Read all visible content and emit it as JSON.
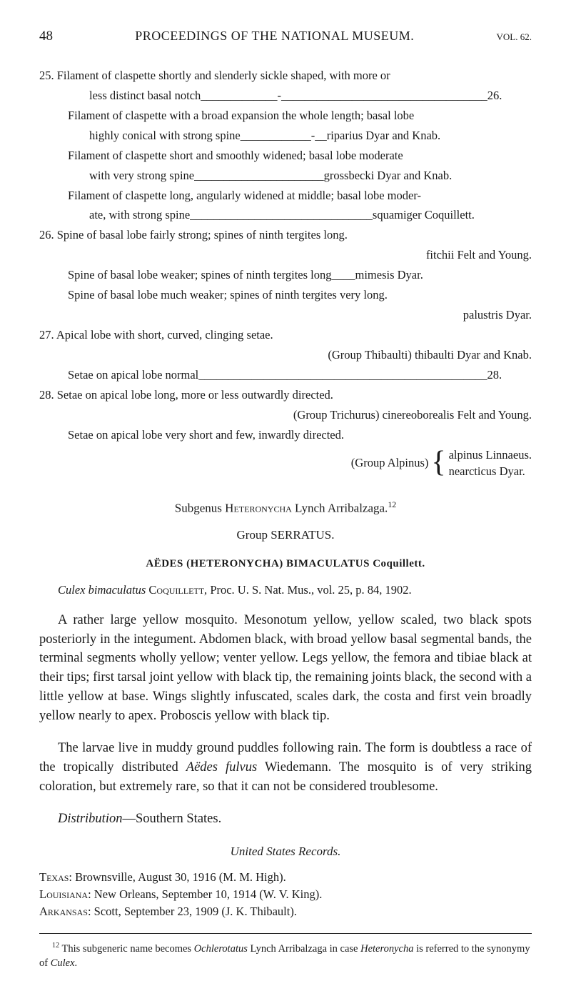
{
  "header": {
    "pageNumber": "48",
    "title": "PROCEEDINGS OF THE NATIONAL MUSEUM.",
    "vol": "VOL. 62."
  },
  "key": {
    "e25a": "25. Filament of claspette shortly and slenderly sickle shaped, with more or",
    "e25b": "less distinct basal notch_____________-___________________________________26.",
    "e25c": "Filament of claspette with a broad expansion the whole length; basal lobe",
    "e25d": "highly conical with strong spine____________-__riparius Dyar and Knab.",
    "e25e": "Filament of claspette short and smoothly widened; basal lobe moderate",
    "e25f": "with very strong spine______________________grossbecki Dyar and Knab.",
    "e25g": "Filament of claspette long, angularly widened at middle; basal lobe moder-",
    "e25h": "ate, with strong spine_______________________________squamiger Coquillett.",
    "e26a": "26. Spine of basal lobe fairly strong; spines of ninth tergites long.",
    "e26b": "fitchii Felt and Young.",
    "e26c": "Spine of basal lobe weaker; spines of ninth tergites long____mimesis Dyar.",
    "e26d": "Spine of basal lobe much weaker; spines of ninth tergites very long.",
    "e26e": "palustris Dyar.",
    "e27a": "27. Apical lobe with short, curved, clinging setae.",
    "e27b": "(Group Thibaulti) thibaulti Dyar and Knab.",
    "e27c": "Setae on apical lobe normal_________________________________________________28.",
    "e28a": "28. Setae on apical lobe long, more or less outwardly directed.",
    "e28b": "(Group Trichurus) cinereoborealis Felt and Young.",
    "e28c": "Setae on apical lobe very short and few, inwardly directed.",
    "braceLabel": "(Group Alpinus)",
    "braceOpt1": "alpinus Linnaeus.",
    "braceOpt2": "nearcticus Dyar."
  },
  "subgenus": {
    "prefix": "Subgenus ",
    "name": "Heteronycha",
    "suffix": " Lynch Arribalzaga.",
    "note": "12"
  },
  "group": "Group SERRATUS.",
  "speciesTitle": "AËDES (HETERONYCHA) BIMACULATUS Coquillett.",
  "citation": {
    "italic": "Culex bimaculatus ",
    "sc": "Coquillett, ",
    "rest": "Proc. U. S. Nat. Mus., vol. 25, p. 84, 1902."
  },
  "para1": "A rather large yellow mosquito. Mesonotum yellow, yellow scaled, two black spots posteriorly in the integument. Abdomen black, with broad yellow basal segmental bands, the terminal segments wholly yellow; venter yellow. Legs yellow, the femora and tibiae black at their tips; first tarsal joint yellow with black tip, the remaining joints black, the second with a little yellow at base. Wings slightly infuscated, scales dark, the costa and first vein broadly yellow nearly to apex. Proboscis yellow with black tip.",
  "para2a": "The larvae live in muddy ground puddles following rain. The form is doubtless a race of the tropically distributed ",
  "para2b": "Aëdes fulvus",
  "para2c": " Wiedemann. The mosquito is of very striking coloration, but extremely rare, so that it can not be considered troublesome.",
  "para3a": "Distribution",
  "para3b": "—Southern States.",
  "recordsTitle": "United States Records.",
  "records": {
    "r1a": "Texas",
    "r1b": ": Brownsville, August 30, 1916 (M. M. High).",
    "r2a": "Louisiana",
    "r2b": ": New Orleans, September 10, 1914 (W. V. King).",
    "r3a": "Arkansas",
    "r3b": ": Scott, September 23, 1909 (J. K. Thibault)."
  },
  "footnote": {
    "num": "12",
    "a": " This subgeneric name becomes ",
    "b": "Ochlerotatus",
    "c": " Lynch Arribalzaga in case ",
    "d": "Heteronycha",
    "e": " is referred to the synonymy of ",
    "f": "Culex",
    "g": "."
  }
}
